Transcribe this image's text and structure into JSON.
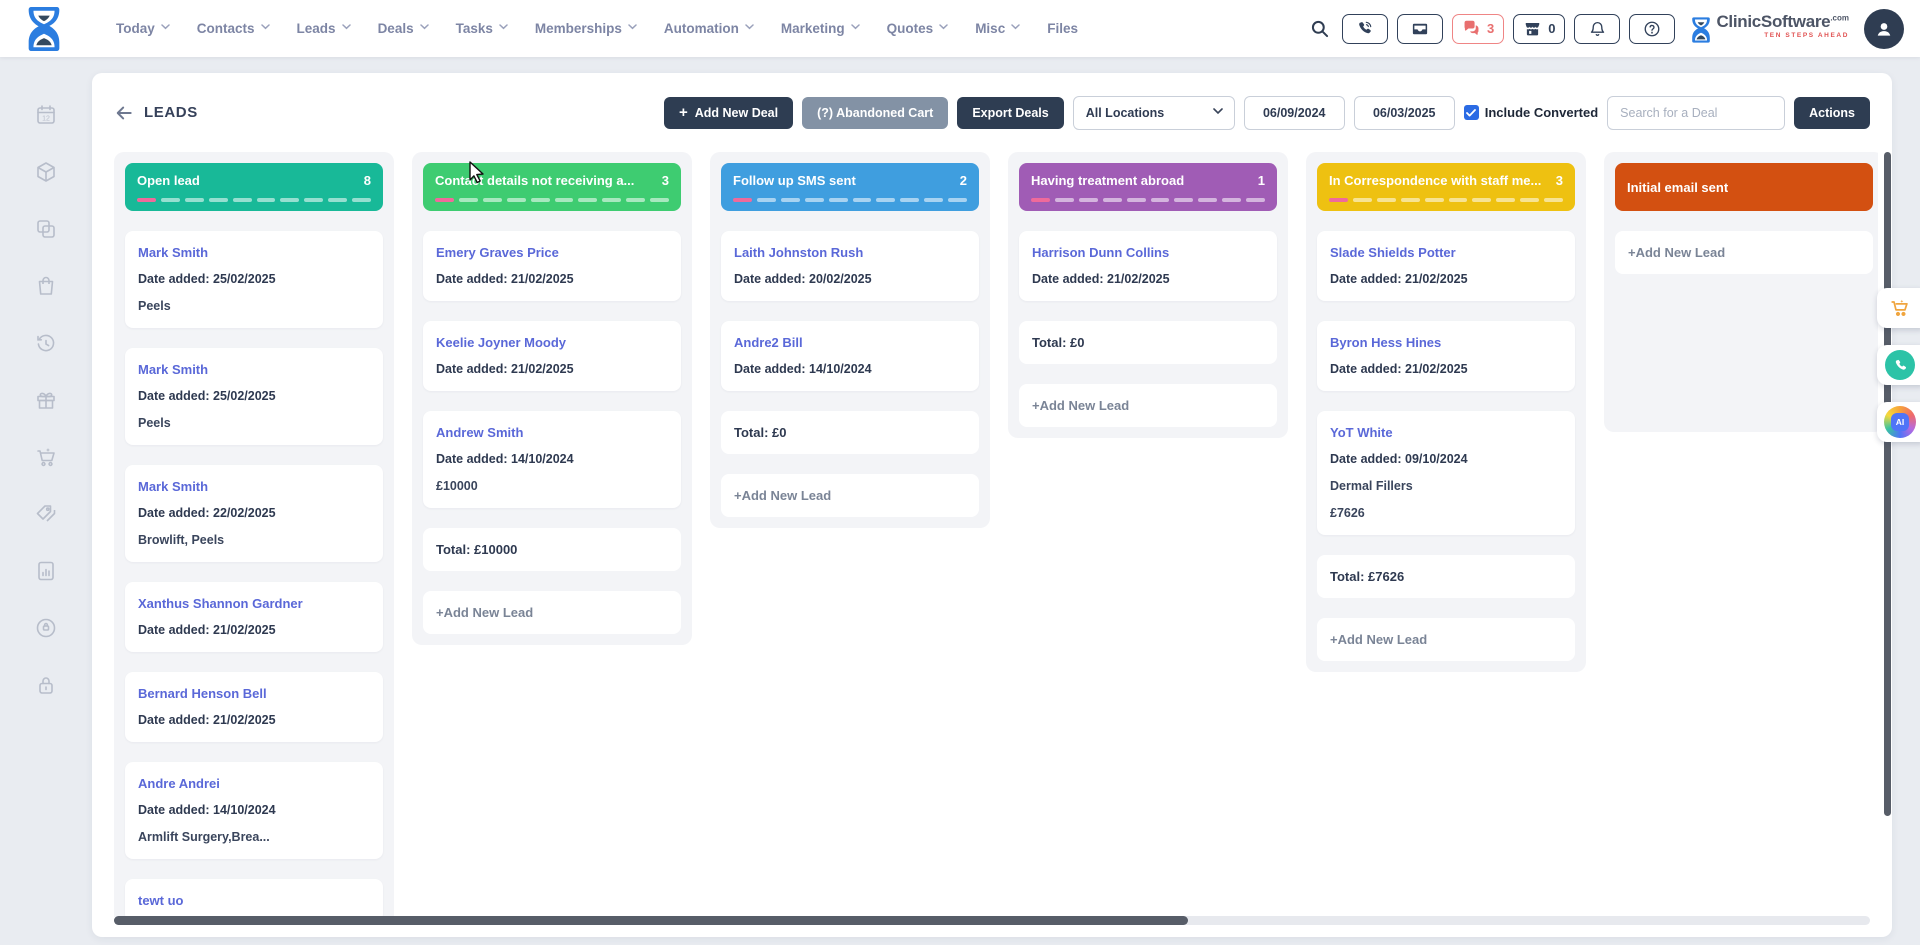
{
  "topnav": {
    "items": [
      {
        "label": "Today",
        "chevron": true
      },
      {
        "label": "Contacts",
        "chevron": true
      },
      {
        "label": "Leads",
        "chevron": true
      },
      {
        "label": "Deals",
        "chevron": true
      },
      {
        "label": "Tasks",
        "chevron": true
      },
      {
        "label": "Memberships",
        "chevron": true
      },
      {
        "label": "Automation",
        "chevron": true
      },
      {
        "label": "Marketing",
        "chevron": true
      },
      {
        "label": "Quotes",
        "chevron": true
      },
      {
        "label": "Misc",
        "chevron": true
      },
      {
        "label": "Files",
        "chevron": false
      }
    ],
    "chat_count": "3",
    "store_count": "0",
    "brand": {
      "name": "ClinicSoftware",
      "suffix": ".com",
      "tagline": "TEN STEPS AHEAD"
    }
  },
  "toolbar": {
    "title": "LEADS",
    "add_new_deal": "Add New Deal",
    "abandoned_cart": "(?) Abandoned Cart",
    "export_deals": "Export Deals",
    "location_select": "All Locations",
    "date_from": "06/09/2024",
    "date_to": "06/03/2025",
    "include_converted": "Include Converted",
    "include_converted_checked": true,
    "search_placeholder": "Search for a Deal",
    "actions": "Actions"
  },
  "board": {
    "add_new_lead_label": "+Add New Lead",
    "dash_pink": "#ef6a9b",
    "columns": [
      {
        "title": "Open lead",
        "count": "8",
        "color": "#18b998",
        "dashes": 10,
        "cards": [
          {
            "name": "Mark Smith",
            "date": "Date added: 25/02/2025",
            "services": "Peels"
          },
          {
            "name": "Mark Smith",
            "date": "Date added: 25/02/2025",
            "services": "Peels"
          },
          {
            "name": "Mark Smith",
            "date": "Date added: 22/02/2025",
            "services": "Browlift, Peels"
          },
          {
            "name": "Xanthus Shannon Gardner",
            "date": "Date added: 21/02/2025"
          },
          {
            "name": "Bernard Henson Bell",
            "date": "Date added: 21/02/2025"
          },
          {
            "name": "Andre Andrei",
            "date": "Date added: 14/10/2024",
            "services": "Armlift Surgery,Brea..."
          },
          {
            "name": "tewt uo"
          }
        ],
        "total": null,
        "add_new": false
      },
      {
        "title": "Contact details not receiving a...",
        "count": "3",
        "color": "#3ecc71",
        "dashes": 10,
        "cards": [
          {
            "name": "Emery Graves Price",
            "date": "Date added: 21/02/2025"
          },
          {
            "name": "Keelie Joyner Moody",
            "date": "Date added: 21/02/2025"
          },
          {
            "name": "Andrew Smith",
            "date": "Date added: 14/10/2024",
            "price": "£10000"
          }
        ],
        "total": "Total: £10000",
        "add_new": true
      },
      {
        "title": "Follow up SMS sent",
        "count": "2",
        "color": "#3f9edf",
        "dashes": 10,
        "cards": [
          {
            "name": "Laith Johnston Rush",
            "date": "Date added: 20/02/2025"
          },
          {
            "name": "Andre2 Bill",
            "date": "Date added: 14/10/2024"
          }
        ],
        "total": "Total: £0",
        "add_new": true
      },
      {
        "title": "Having treatment abroad",
        "count": "1",
        "color": "#a05cb5",
        "dashes": 10,
        "cards": [
          {
            "name": "Harrison Dunn Collins",
            "date": "Date added: 21/02/2025"
          }
        ],
        "total": "Total: £0",
        "add_new": true
      },
      {
        "title": "In Correspondence with staff me...",
        "count": "3",
        "color": "#eec111",
        "dashes": 10,
        "cards": [
          {
            "name": "Slade Shields Potter",
            "date": "Date added: 21/02/2025"
          },
          {
            "name": "Byron Hess Hines",
            "date": "Date added: 21/02/2025"
          },
          {
            "name": "YoT White",
            "date": "Date added: 09/10/2024",
            "services": "Dermal Fillers",
            "price": "£7626"
          }
        ],
        "total": "Total: £7626",
        "add_new": true
      },
      {
        "title": "Initial email sent",
        "count": "",
        "color": "#d35011",
        "dashes": 0,
        "cards": [],
        "total": null,
        "add_new": true
      }
    ]
  }
}
